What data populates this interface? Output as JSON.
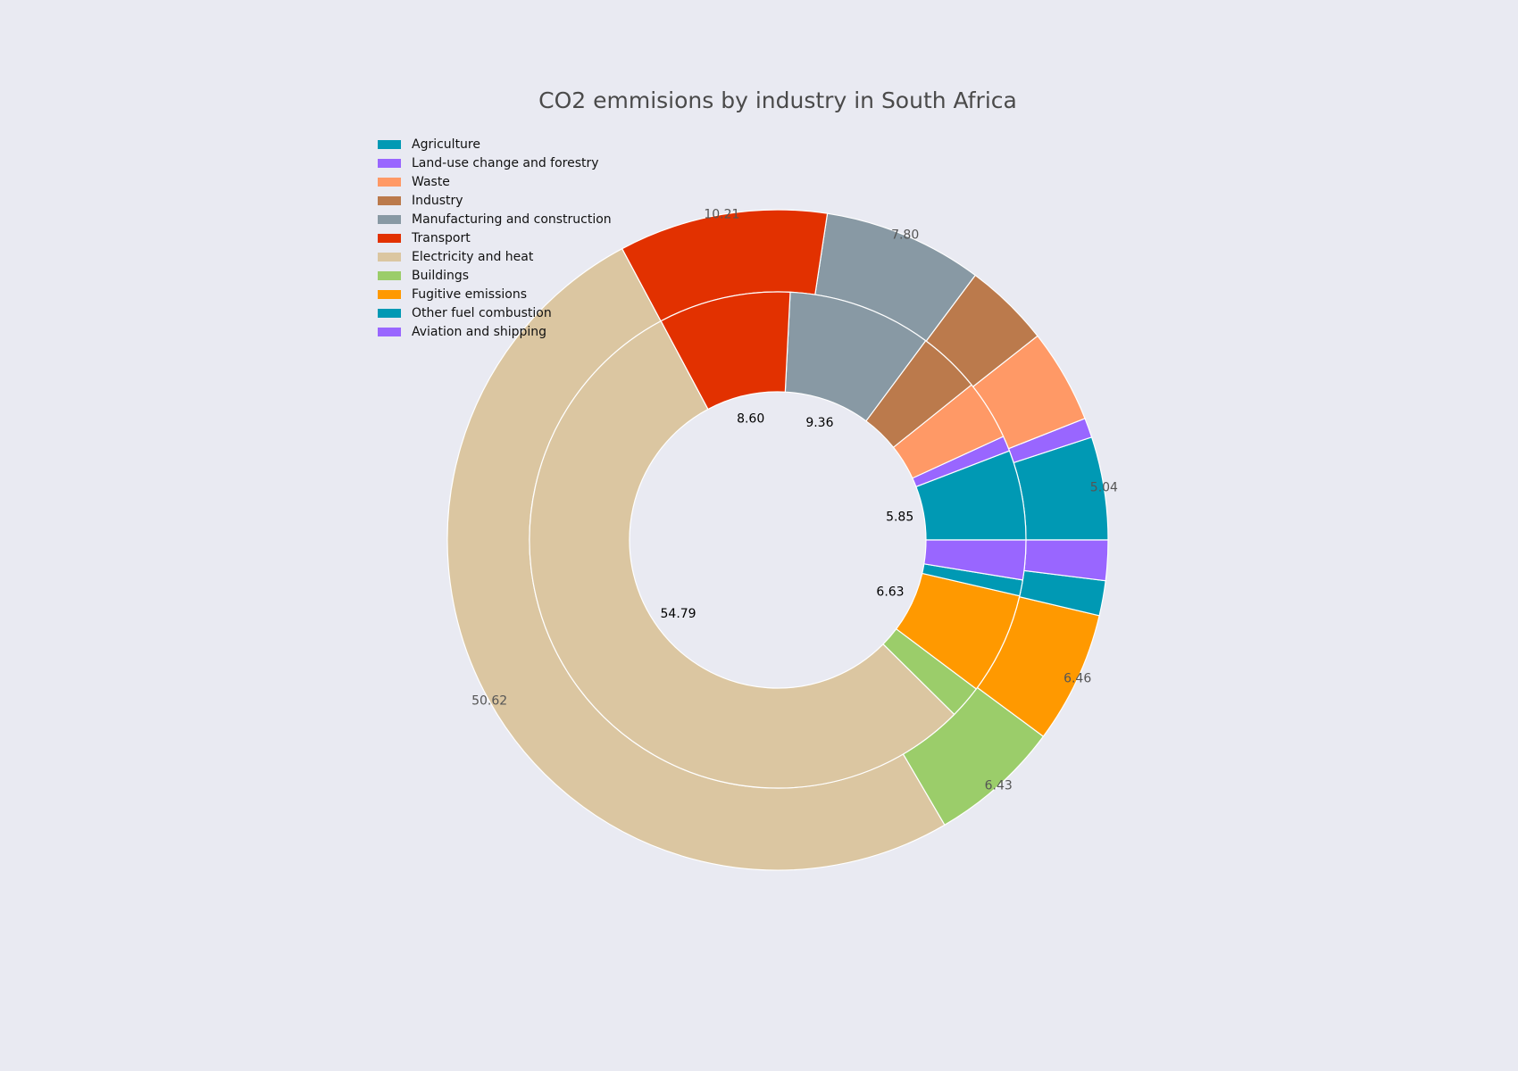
{
  "chart_data": {
    "type": "pie",
    "title": "CO2 emmisions by industry in South Africa",
    "categories": [
      "Agriculture",
      "Land-use change and forestry",
      "Waste",
      "Industry",
      "Manufacturing and construction",
      "Transport",
      "Electricity and heat",
      "Buildings",
      "Fugitive emissions",
      "Other fuel combustion",
      "Aviation and shipping"
    ],
    "colors": [
      "#0099b4",
      "#9966ff",
      "#ff9966",
      "#bb7a4c",
      "#8899a4",
      "#e23100",
      "#dbc6a1",
      "#9bcd6a",
      "#ff9900",
      "#0099b4",
      "#9966ff"
    ],
    "series": [
      {
        "values": [
          5.04,
          0.96,
          4.6,
          4.2,
          7.8,
          10.21,
          50.62,
          6.43,
          6.46,
          1.71,
          1.97
        ],
        "value_labels": [
          "5.04",
          null,
          null,
          null,
          "7.80",
          "10.21",
          "50.62",
          "6.43",
          "6.46",
          null,
          null
        ]
      },
      {
        "values": [
          5.85,
          1.0,
          3.9,
          4.09,
          9.36,
          8.6,
          54.79,
          2.16,
          6.63,
          1.04,
          2.58
        ],
        "value_labels": [
          "5.85",
          null,
          null,
          null,
          "9.36",
          "8.60",
          "54.79",
          null,
          "6.63",
          null,
          null
        ]
      }
    ]
  }
}
